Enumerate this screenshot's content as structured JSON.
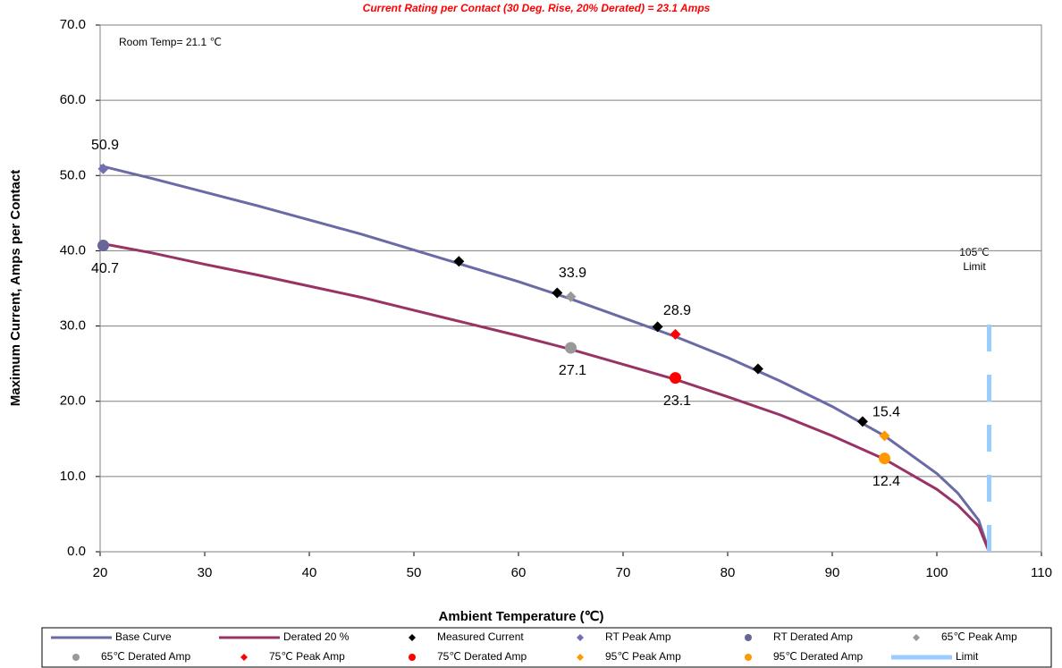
{
  "chart_data": {
    "type": "line",
    "title": "Current Rating per Contact (30 Deg. Rise, 20% Derated)  = 23.1 Amps",
    "xlabel": "Ambient Temperature (℃)",
    "ylabel": "Maximum Current, Amps per Contact",
    "annotations": [
      "Room Temp= 21.1 ℃",
      "105℃",
      "Limit"
    ],
    "xlim": [
      20,
      110
    ],
    "xticks": [
      20,
      30,
      40,
      50,
      60,
      70,
      80,
      90,
      100,
      110
    ],
    "ylim": [
      0,
      70
    ],
    "yticks": [
      {
        "value": 0,
        "label": "0.0"
      },
      {
        "value": 10,
        "label": "10.0"
      },
      {
        "value": 20,
        "label": "20.0"
      },
      {
        "value": 30,
        "label": "30.0"
      },
      {
        "value": 40,
        "label": "40.0"
      },
      {
        "value": 50,
        "label": "50.0"
      },
      {
        "value": 60,
        "label": "60.0"
      },
      {
        "value": 70,
        "label": "70.0"
      }
    ],
    "grid": true,
    "legend": "bottom",
    "series": [
      {
        "name": "Base Curve",
        "color": "#6a6aa6",
        "marker": "line",
        "x": [
          20,
          25,
          30,
          35,
          40,
          45,
          50,
          55,
          60,
          65,
          70,
          75,
          80,
          85,
          90,
          95,
          100,
          102,
          104,
          105
        ],
        "values": [
          51.3,
          49.6,
          47.8,
          46.0,
          44.1,
          42.2,
          40.1,
          38.0,
          35.9,
          33.6,
          31.1,
          28.6,
          25.8,
          22.7,
          19.3,
          15.4,
          10.4,
          7.8,
          4.2,
          0
        ]
      },
      {
        "name": "Derated 20 %",
        "color": "#993366",
        "marker": "line",
        "x": [
          20,
          25,
          30,
          35,
          40,
          45,
          50,
          55,
          60,
          65,
          70,
          75,
          80,
          85,
          90,
          95,
          100,
          102,
          104,
          105
        ],
        "values": [
          41.0,
          39.7,
          38.2,
          36.8,
          35.3,
          33.8,
          32.1,
          30.4,
          28.7,
          26.9,
          24.9,
          22.9,
          20.6,
          18.2,
          15.4,
          12.3,
          8.3,
          6.2,
          3.4,
          0
        ]
      },
      {
        "name": "Measured Current",
        "color": "#000000",
        "marker": "diamond",
        "x": [
          54.3,
          63.7,
          73.3,
          82.9,
          92.9
        ],
        "values": [
          38.6,
          34.4,
          29.9,
          24.3,
          17.3
        ]
      },
      {
        "name": "RT Peak Amp",
        "color": "#7070b0",
        "marker": "diamond",
        "x": [
          20.3
        ],
        "values": [
          50.9
        ],
        "label_position": "above"
      },
      {
        "name": "RT Derated Amp",
        "color": "#666699",
        "marker": "circle",
        "x": [
          20.3
        ],
        "values": [
          40.7
        ],
        "label_position": "below"
      },
      {
        "name": "65℃ Peak Amp",
        "color": "#999999",
        "marker": "diamond",
        "x": [
          65
        ],
        "values": [
          33.9
        ],
        "label_position": "above"
      },
      {
        "name": "65℃ Derated Amp",
        "color": "#999999",
        "marker": "circle",
        "x": [
          65
        ],
        "values": [
          27.1
        ],
        "label_position": "below"
      },
      {
        "name": "75℃ Peak Amp",
        "color": "#ff0000",
        "marker": "diamond",
        "x": [
          75
        ],
        "values": [
          28.9
        ],
        "label_position": "above"
      },
      {
        "name": "75℃ Derated Amp",
        "color": "#ff0000",
        "marker": "circle",
        "x": [
          75
        ],
        "values": [
          23.1
        ],
        "label_position": "below"
      },
      {
        "name": "95℃ Peak Amp",
        "color": "#ff9900",
        "marker": "diamond",
        "x": [
          95
        ],
        "values": [
          15.4
        ],
        "label_position": "above"
      },
      {
        "name": "95℃ Derated Amp",
        "color": "#ff9900",
        "marker": "circle",
        "x": [
          95
        ],
        "values": [
          12.4
        ],
        "label_position": "below"
      },
      {
        "name": "Limit",
        "color": "#99ccff",
        "marker": "dash",
        "x": [
          105,
          105
        ],
        "values": [
          0,
          32.7
        ]
      }
    ]
  }
}
